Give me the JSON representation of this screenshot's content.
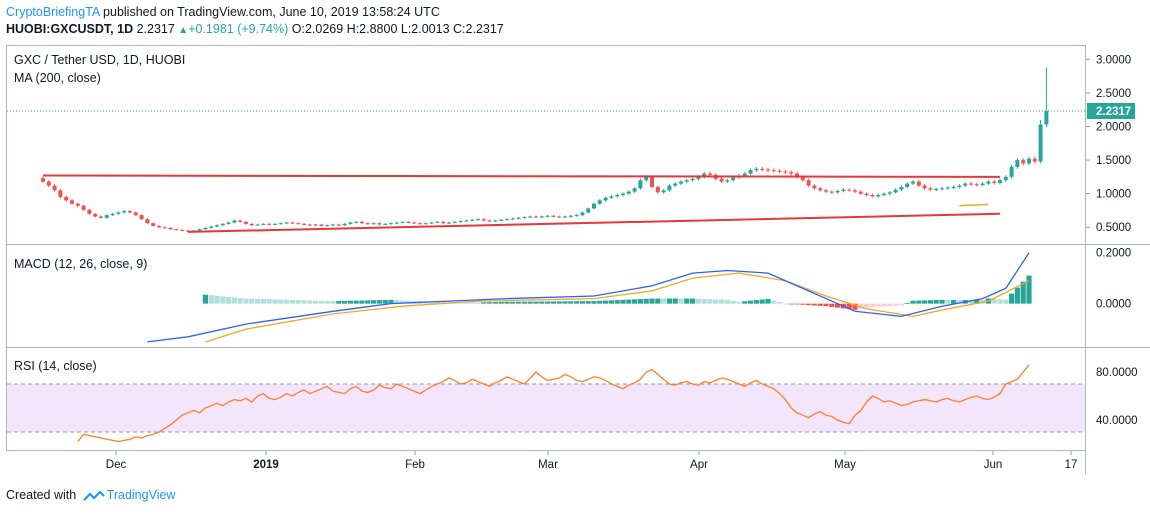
{
  "header": {
    "author": "CryptoBriefingTA",
    "published_text": "published on TradingView.com, June 10, 2019 13:58:24 UTC",
    "symbol": "HUOBI:GXCUSDT, 1D",
    "last": "2.2317",
    "change": "+0.1981 (+9.74%)",
    "ohlc": "O:2.0269  H:2.8800  L:2.0013  C:2.2317",
    "arrow_glyph": "▲"
  },
  "footer": {
    "created_with": "Created with",
    "brand": "TradingView"
  },
  "colors": {
    "up": "#26a69a",
    "down": "#ef5350",
    "trendline": "#e53935",
    "ma": "#f5a623",
    "macd": "#2962ff",
    "signal": "#f5a623",
    "rsi": "#ff7f2a",
    "rsi_band": "#f3e5fb",
    "price_label_bg": "#26a69a"
  },
  "chart_data": [
    {
      "type": "candlestick",
      "title": "GXC / Tether USD, 1D, HUOBI",
      "indicator_label": "MA (200, close)",
      "x_ticks": [
        "Dec",
        "2019",
        "Feb",
        "Mar",
        "Apr",
        "May",
        "Jun",
        "17"
      ],
      "y_ticks": [
        "0.5000",
        "1.0000",
        "1.5000",
        "2.0000",
        "2.5000",
        "3.0000"
      ],
      "ylim": [
        0.25,
        3.2
      ],
      "last_price_label": "2.2317",
      "last_price": 2.2317,
      "candles_note": "approximate daily closes read from chart",
      "closes": [
        1.18,
        1.12,
        1.05,
        0.95,
        0.9,
        0.85,
        0.82,
        0.76,
        0.7,
        0.66,
        0.64,
        0.68,
        0.7,
        0.72,
        0.74,
        0.72,
        0.68,
        0.62,
        0.56,
        0.52,
        0.5,
        0.49,
        0.47,
        0.46,
        0.45,
        0.44,
        0.45,
        0.47,
        0.49,
        0.51,
        0.53,
        0.55,
        0.57,
        0.6,
        0.58,
        0.55,
        0.53,
        0.54,
        0.55,
        0.54,
        0.55,
        0.56,
        0.57,
        0.56,
        0.55,
        0.54,
        0.53,
        0.54,
        0.52,
        0.53,
        0.54,
        0.53,
        0.55,
        0.57,
        0.58,
        0.56,
        0.55,
        0.56,
        0.54,
        0.55,
        0.56,
        0.57,
        0.58,
        0.57,
        0.56,
        0.55,
        0.56,
        0.57,
        0.58,
        0.56,
        0.57,
        0.58,
        0.59,
        0.6,
        0.61,
        0.62,
        0.6,
        0.59,
        0.6,
        0.61,
        0.62,
        0.63,
        0.64,
        0.65,
        0.66,
        0.65,
        0.66,
        0.67,
        0.66,
        0.65,
        0.66,
        0.67,
        0.68,
        0.72,
        0.78,
        0.85,
        0.9,
        0.94,
        0.96,
        0.98,
        1.0,
        1.03,
        1.08,
        1.2,
        1.25,
        1.1,
        1.02,
        1.05,
        1.12,
        1.15,
        1.18,
        1.2,
        1.22,
        1.25,
        1.3,
        1.28,
        1.22,
        1.18,
        1.2,
        1.24,
        1.27,
        1.3,
        1.35,
        1.37,
        1.36,
        1.35,
        1.34,
        1.33,
        1.32,
        1.3,
        1.25,
        1.2,
        1.12,
        1.08,
        1.05,
        1.03,
        1.02,
        1.04,
        1.06,
        1.05,
        1.03,
        1.0,
        0.98,
        0.96,
        0.98,
        1.0,
        1.02,
        1.06,
        1.1,
        1.15,
        1.18,
        1.12,
        1.08,
        1.06,
        1.07,
        1.08,
        1.09,
        1.1,
        1.12,
        1.15,
        1.14,
        1.13,
        1.15,
        1.18,
        1.16,
        1.2,
        1.25,
        1.4,
        1.5,
        1.45,
        1.52,
        1.48,
        2.03,
        2.23
      ],
      "trendlines": [
        {
          "name": "resistance",
          "points": [
            [
              0,
              1.27
            ],
            [
              165,
              1.25
            ]
          ]
        },
        {
          "name": "support",
          "points": [
            [
              25,
              0.43
            ],
            [
              165,
              0.7
            ]
          ]
        }
      ],
      "ma_segment": [
        [
          158,
          0.82
        ],
        [
          163,
          0.84
        ]
      ]
    },
    {
      "type": "line",
      "title": "MACD (12, 26, close, 9)",
      "y_ticks": [
        "0.0000",
        "0.2000"
      ],
      "ylim": [
        -0.17,
        0.23
      ],
      "macd_points": [
        [
          18,
          -0.15
        ],
        [
          25,
          -0.13
        ],
        [
          35,
          -0.08
        ],
        [
          50,
          -0.03
        ],
        [
          60,
          0.0
        ],
        [
          70,
          0.01
        ],
        [
          80,
          0.02
        ],
        [
          95,
          0.03
        ],
        [
          105,
          0.07
        ],
        [
          112,
          0.12
        ],
        [
          118,
          0.13
        ],
        [
          125,
          0.12
        ],
        [
          132,
          0.05
        ],
        [
          140,
          -0.03
        ],
        [
          148,
          -0.05
        ],
        [
          155,
          -0.01
        ],
        [
          162,
          0.02
        ],
        [
          166,
          0.06
        ],
        [
          170,
          0.2
        ]
      ],
      "signal_points": [
        [
          28,
          -0.15
        ],
        [
          35,
          -0.1
        ],
        [
          50,
          -0.04
        ],
        [
          62,
          -0.01
        ],
        [
          75,
          0.01
        ],
        [
          95,
          0.02
        ],
        [
          105,
          0.05
        ],
        [
          112,
          0.1
        ],
        [
          120,
          0.12
        ],
        [
          128,
          0.09
        ],
        [
          135,
          0.03
        ],
        [
          142,
          -0.02
        ],
        [
          150,
          -0.05
        ],
        [
          156,
          -0.02
        ],
        [
          163,
          0.01
        ],
        [
          170,
          0.09
        ]
      ]
    },
    {
      "type": "line",
      "title": "RSI (14, close)",
      "y_ticks": [
        "40.0000",
        "80.0000"
      ],
      "ylim": [
        15,
        100
      ],
      "band": [
        30,
        70
      ],
      "rsi_values": [
        22,
        28,
        27,
        26,
        25,
        24,
        23,
        22,
        23,
        24,
        26,
        25,
        27,
        28,
        30,
        33,
        36,
        40,
        44,
        46,
        48,
        46,
        50,
        52,
        54,
        52,
        55,
        57,
        56,
        58,
        55,
        60,
        62,
        58,
        57,
        59,
        62,
        60,
        63,
        65,
        62,
        64,
        66,
        68,
        64,
        63,
        62,
        66,
        68,
        64,
        63,
        65,
        69,
        67,
        66,
        70,
        68,
        66,
        64,
        62,
        65,
        68,
        70,
        72,
        75,
        73,
        70,
        71,
        74,
        72,
        70,
        68,
        71,
        73,
        76,
        74,
        72,
        70,
        75,
        80,
        76,
        73,
        74,
        75,
        78,
        76,
        73,
        72,
        74,
        76,
        75,
        73,
        70,
        68,
        66,
        69,
        71,
        74,
        80,
        82,
        78,
        74,
        70,
        69,
        71,
        72,
        70,
        69,
        72,
        71,
        73,
        75,
        74,
        72,
        70,
        68,
        71,
        73,
        70,
        68,
        66,
        62,
        57,
        50,
        46,
        44,
        42,
        45,
        47,
        44,
        43,
        40,
        38,
        37,
        44,
        48,
        55,
        60,
        58,
        55,
        56,
        54,
        52,
        53,
        55,
        56,
        57,
        56,
        55,
        57,
        58,
        56,
        55,
        57,
        59,
        60,
        58,
        57,
        59,
        62,
        70,
        72,
        74,
        80,
        86
      ]
    }
  ]
}
